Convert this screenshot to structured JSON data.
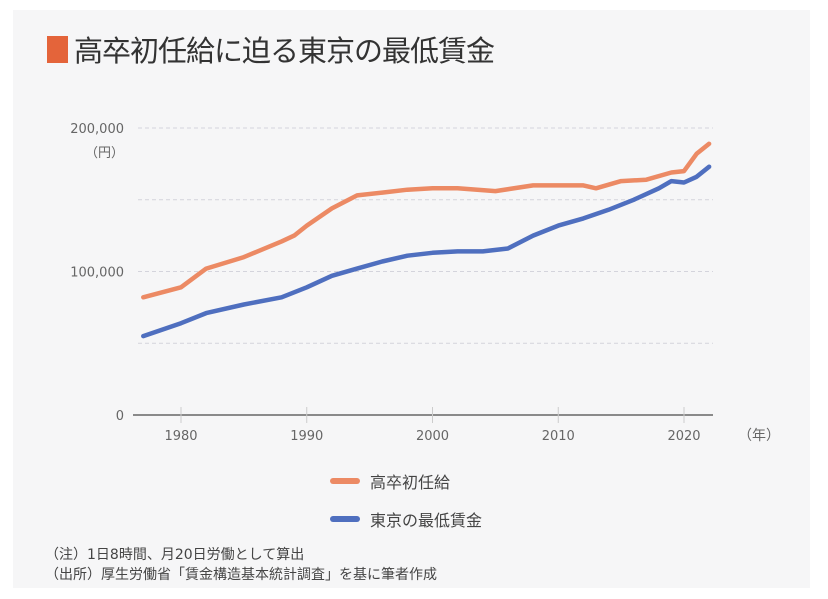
{
  "title": "高卒初任給に迫る東京の最低賃金",
  "colors": {
    "accent": "#e4643a",
    "series1": "#ec8a64",
    "series2": "#4f6fbf"
  },
  "chart_data": {
    "type": "line",
    "title": "高卒初任給に迫る東京の最低賃金",
    "xlabel": "（年）",
    "ylabel": "（円）",
    "xlim": [
      1977,
      2022
    ],
    "ylim": [
      0,
      200000
    ],
    "yticks": [
      0,
      100000,
      200000
    ],
    "ytick_labels": [
      "0",
      "100,000",
      "200,000"
    ],
    "xticks": [
      1980,
      1990,
      2000,
      2010,
      2020
    ],
    "xtick_labels": [
      "1980",
      "1990",
      "2000",
      "2010",
      "2020"
    ],
    "grid": true,
    "legend_position": "bottom",
    "series": [
      {
        "name": "高卒初任給",
        "color": "#ec8a64",
        "x": [
          1977,
          1980,
          1982,
          1985,
          1988,
          1989,
          1990,
          1992,
          1994,
          1996,
          1998,
          2000,
          2002,
          2005,
          2008,
          2010,
          2012,
          2013,
          2015,
          2017,
          2019,
          2020,
          2021,
          2022
        ],
        "values": [
          82000,
          89000,
          102000,
          110000,
          121000,
          125000,
          132000,
          144000,
          153000,
          155000,
          157000,
          158000,
          158000,
          156000,
          160000,
          160000,
          160000,
          158000,
          163000,
          164000,
          169000,
          170000,
          182000,
          189000
        ]
      },
      {
        "name": "東京の最低賃金",
        "color": "#4f6fbf",
        "x": [
          1977,
          1980,
          1982,
          1985,
          1988,
          1990,
          1992,
          1994,
          1996,
          1998,
          2000,
          2002,
          2004,
          2006,
          2008,
          2010,
          2012,
          2014,
          2016,
          2018,
          2019,
          2020,
          2021,
          2022
        ],
        "values": [
          55000,
          64000,
          71000,
          77000,
          82000,
          89000,
          97000,
          102000,
          107000,
          111000,
          113000,
          114000,
          114000,
          116000,
          125000,
          132000,
          137000,
          143000,
          150000,
          158000,
          163000,
          162000,
          166000,
          173000
        ]
      }
    ]
  },
  "notes": [
    "（注）1日8時間、月20日労働として算出",
    "（出所）厚生労働省「賃金構造基本統計調査」を基に筆者作成"
  ]
}
